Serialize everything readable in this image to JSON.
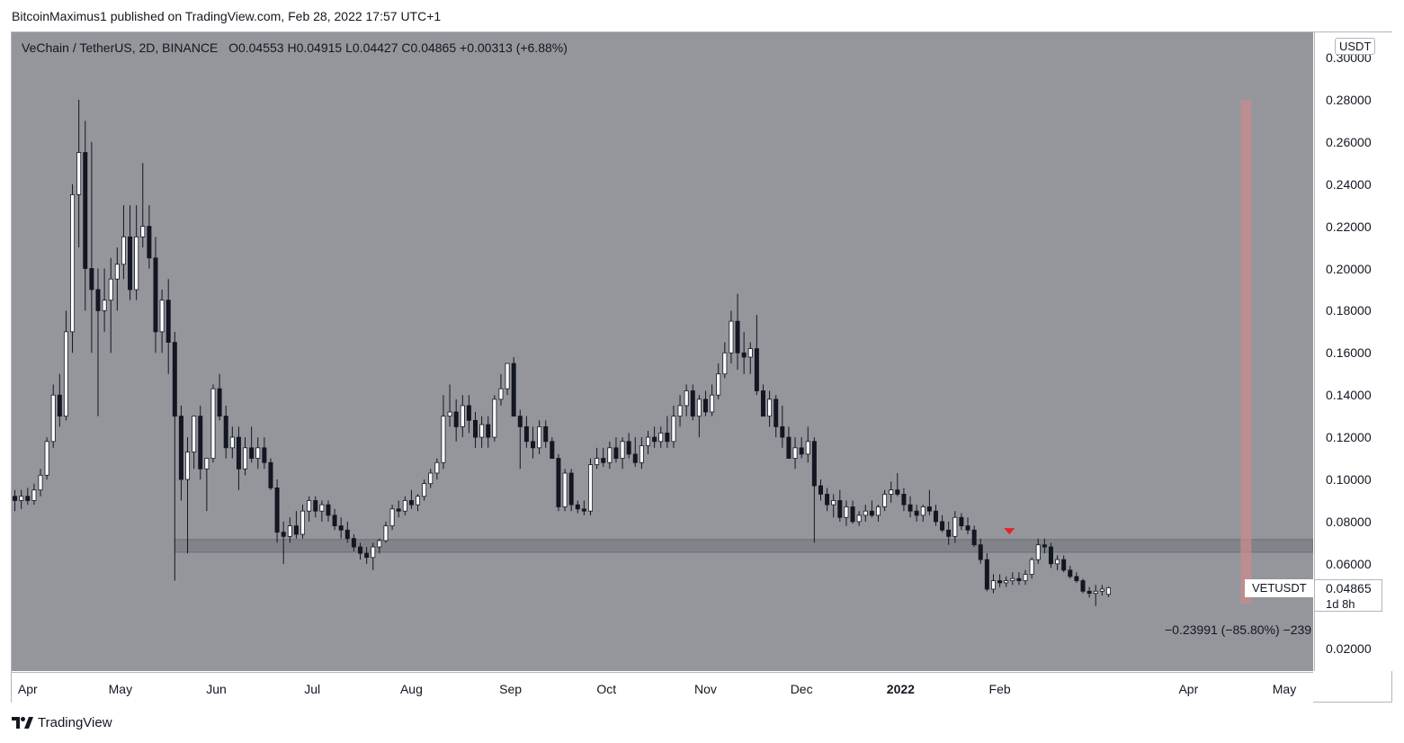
{
  "header": {
    "publish_line": "BitcoinMaximus1 published on TradingView.com, Feb 28, 2022 17:57 UTC+1"
  },
  "legend": {
    "symbol": "VeChain / TetherUS, 2D, BINANCE",
    "open_key": "O",
    "open": "0.04553",
    "high_key": "H",
    "high": "0.04915",
    "low_key": "L",
    "low": "0.04427",
    "close_key": "C",
    "close": "0.04865",
    "change": "+0.00313 (+6.88%)"
  },
  "price_axis": {
    "currency": "USDT",
    "labels": [
      "0.30000",
      "0.28000",
      "0.26000",
      "0.24000",
      "0.22000",
      "0.20000",
      "0.18000",
      "0.16000",
      "0.14000",
      "0.12000",
      "0.10000",
      "0.08000",
      "0.06000",
      "0.02000"
    ]
  },
  "time_axis": {
    "labels": [
      "Apr",
      "May",
      "Jun",
      "Jul",
      "Aug",
      "Sep",
      "Oct",
      "Nov",
      "Dec",
      "2022",
      "Feb",
      "Apr",
      "May"
    ]
  },
  "last_price": {
    "symbol": "VETUSDT",
    "price": "0.04865",
    "countdown": "1d 8h"
  },
  "measure": {
    "label": "−0.23991 (−85.80%) −239"
  },
  "footer": {
    "brand": "TradingView"
  },
  "colors": {
    "plot_bg": "#94969c",
    "candle_up": "#ffffff",
    "candle_down": "#131722",
    "support_zone": "#7e8087",
    "measure_bar": "#c98a8e",
    "marker": "#e8202a"
  },
  "chart_data": {
    "type": "candlestick",
    "title": "VeChain / TetherUS, 2D, BINANCE",
    "ylabel": "USDT",
    "ylim": [
      0.0,
      0.3
    ],
    "x_range": [
      "2021-03-29",
      "2022-05-10"
    ],
    "support_zone": [
      0.0655,
      0.0715
    ],
    "marker": {
      "type": "triangle-down",
      "date": "2022-02-04",
      "y": 0.0735
    },
    "measure": {
      "from": 0.28,
      "to": 0.041,
      "date": "2022-04-19",
      "change": -0.23991,
      "pct": -85.8
    },
    "candles_fields": [
      "date",
      "open",
      "high",
      "low",
      "close"
    ],
    "candles": [
      [
        "2021-03-30",
        0.092,
        0.095,
        0.085,
        0.09
      ],
      [
        "2021-04-01",
        0.09,
        0.095,
        0.086,
        0.092
      ],
      [
        "2021-04-03",
        0.092,
        0.096,
        0.088,
        0.09
      ],
      [
        "2021-04-05",
        0.09,
        0.098,
        0.088,
        0.095
      ],
      [
        "2021-04-07",
        0.095,
        0.105,
        0.092,
        0.102
      ],
      [
        "2021-04-09",
        0.102,
        0.12,
        0.1,
        0.118
      ],
      [
        "2021-04-11",
        0.118,
        0.145,
        0.115,
        0.14
      ],
      [
        "2021-04-13",
        0.14,
        0.15,
        0.125,
        0.13
      ],
      [
        "2021-04-15",
        0.13,
        0.18,
        0.128,
        0.17
      ],
      [
        "2021-04-17",
        0.17,
        0.24,
        0.16,
        0.235
      ],
      [
        "2021-04-19",
        0.235,
        0.28,
        0.21,
        0.255
      ],
      [
        "2021-04-21",
        0.255,
        0.27,
        0.18,
        0.2
      ],
      [
        "2021-04-23",
        0.2,
        0.26,
        0.16,
        0.19
      ],
      [
        "2021-04-25",
        0.19,
        0.2,
        0.13,
        0.18
      ],
      [
        "2021-04-27",
        0.18,
        0.2,
        0.17,
        0.185
      ],
      [
        "2021-04-29",
        0.185,
        0.205,
        0.16,
        0.195
      ],
      [
        "2021-05-01",
        0.195,
        0.21,
        0.18,
        0.202
      ],
      [
        "2021-05-03",
        0.202,
        0.23,
        0.195,
        0.215
      ],
      [
        "2021-05-05",
        0.215,
        0.23,
        0.185,
        0.19
      ],
      [
        "2021-05-07",
        0.19,
        0.23,
        0.185,
        0.215
      ],
      [
        "2021-05-09",
        0.215,
        0.25,
        0.21,
        0.22
      ],
      [
        "2021-05-11",
        0.22,
        0.23,
        0.2,
        0.205
      ],
      [
        "2021-05-13",
        0.205,
        0.215,
        0.16,
        0.17
      ],
      [
        "2021-05-15",
        0.17,
        0.19,
        0.16,
        0.185
      ],
      [
        "2021-05-17",
        0.185,
        0.195,
        0.15,
        0.165
      ],
      [
        "2021-05-19",
        0.165,
        0.17,
        0.052,
        0.13
      ],
      [
        "2021-05-21",
        0.13,
        0.135,
        0.09,
        0.1
      ],
      [
        "2021-05-23",
        0.1,
        0.12,
        0.065,
        0.113
      ],
      [
        "2021-05-25",
        0.113,
        0.13,
        0.105,
        0.13
      ],
      [
        "2021-05-27",
        0.13,
        0.135,
        0.1,
        0.105
      ],
      [
        "2021-05-29",
        0.105,
        0.11,
        0.085,
        0.11
      ],
      [
        "2021-05-31",
        0.11,
        0.145,
        0.108,
        0.143
      ],
      [
        "2021-06-02",
        0.143,
        0.15,
        0.128,
        0.13
      ],
      [
        "2021-06-04",
        0.13,
        0.135,
        0.11,
        0.115
      ],
      [
        "2021-06-06",
        0.115,
        0.125,
        0.11,
        0.12
      ],
      [
        "2021-06-08",
        0.12,
        0.125,
        0.095,
        0.105
      ],
      [
        "2021-06-10",
        0.105,
        0.12,
        0.102,
        0.115
      ],
      [
        "2021-06-12",
        0.115,
        0.125,
        0.108,
        0.11
      ],
      [
        "2021-06-14",
        0.11,
        0.12,
        0.105,
        0.115
      ],
      [
        "2021-06-16",
        0.115,
        0.12,
        0.105,
        0.108
      ],
      [
        "2021-06-18",
        0.108,
        0.11,
        0.095,
        0.096
      ],
      [
        "2021-06-20",
        0.096,
        0.1,
        0.07,
        0.075
      ],
      [
        "2021-06-22",
        0.075,
        0.08,
        0.06,
        0.073
      ],
      [
        "2021-06-24",
        0.073,
        0.082,
        0.07,
        0.078
      ],
      [
        "2021-06-26",
        0.078,
        0.085,
        0.072,
        0.074
      ],
      [
        "2021-06-28",
        0.074,
        0.088,
        0.072,
        0.085
      ],
      [
        "2021-06-30",
        0.085,
        0.092,
        0.08,
        0.09
      ],
      [
        "2021-07-02",
        0.09,
        0.092,
        0.082,
        0.085
      ],
      [
        "2021-07-04",
        0.085,
        0.09,
        0.08,
        0.088
      ],
      [
        "2021-07-06",
        0.088,
        0.09,
        0.08,
        0.083
      ],
      [
        "2021-07-08",
        0.083,
        0.086,
        0.076,
        0.078
      ],
      [
        "2021-07-10",
        0.078,
        0.082,
        0.072,
        0.076
      ],
      [
        "2021-07-12",
        0.076,
        0.08,
        0.07,
        0.072
      ],
      [
        "2021-07-14",
        0.072,
        0.074,
        0.066,
        0.068
      ],
      [
        "2021-07-16",
        0.068,
        0.07,
        0.062,
        0.065
      ],
      [
        "2021-07-18",
        0.065,
        0.068,
        0.06,
        0.063
      ],
      [
        "2021-07-20",
        0.063,
        0.07,
        0.057,
        0.068
      ],
      [
        "2021-07-22",
        0.068,
        0.072,
        0.065,
        0.071
      ],
      [
        "2021-07-24",
        0.071,
        0.08,
        0.07,
        0.078
      ],
      [
        "2021-07-26",
        0.078,
        0.088,
        0.076,
        0.086
      ],
      [
        "2021-07-28",
        0.086,
        0.09,
        0.082,
        0.085
      ],
      [
        "2021-07-30",
        0.085,
        0.092,
        0.083,
        0.09
      ],
      [
        "2021-08-01",
        0.09,
        0.095,
        0.086,
        0.088
      ],
      [
        "2021-08-03",
        0.088,
        0.093,
        0.085,
        0.092
      ],
      [
        "2021-08-05",
        0.092,
        0.1,
        0.09,
        0.098
      ],
      [
        "2021-08-07",
        0.098,
        0.105,
        0.096,
        0.103
      ],
      [
        "2021-08-09",
        0.103,
        0.11,
        0.1,
        0.108
      ],
      [
        "2021-08-11",
        0.108,
        0.14,
        0.105,
        0.13
      ],
      [
        "2021-08-13",
        0.13,
        0.145,
        0.125,
        0.132
      ],
      [
        "2021-08-15",
        0.132,
        0.138,
        0.118,
        0.125
      ],
      [
        "2021-08-17",
        0.125,
        0.14,
        0.12,
        0.135
      ],
      [
        "2021-08-19",
        0.135,
        0.14,
        0.122,
        0.128
      ],
      [
        "2021-08-21",
        0.128,
        0.132,
        0.115,
        0.12
      ],
      [
        "2021-08-23",
        0.12,
        0.13,
        0.115,
        0.126
      ],
      [
        "2021-08-25",
        0.126,
        0.13,
        0.115,
        0.12
      ],
      [
        "2021-08-27",
        0.12,
        0.14,
        0.118,
        0.138
      ],
      [
        "2021-08-29",
        0.138,
        0.15,
        0.135,
        0.143
      ],
      [
        "2021-08-31",
        0.143,
        0.155,
        0.14,
        0.155
      ],
      [
        "2021-09-02",
        0.155,
        0.158,
        0.13,
        0.13
      ],
      [
        "2021-09-04",
        0.13,
        0.133,
        0.105,
        0.125
      ],
      [
        "2021-09-06",
        0.125,
        0.13,
        0.115,
        0.118
      ],
      [
        "2021-09-08",
        0.118,
        0.125,
        0.11,
        0.115
      ],
      [
        "2021-09-10",
        0.115,
        0.128,
        0.112,
        0.125
      ],
      [
        "2021-09-12",
        0.125,
        0.128,
        0.115,
        0.118
      ],
      [
        "2021-09-14",
        0.118,
        0.12,
        0.11,
        0.11
      ],
      [
        "2021-09-16",
        0.11,
        0.112,
        0.085,
        0.087
      ],
      [
        "2021-09-18",
        0.087,
        0.105,
        0.085,
        0.103
      ],
      [
        "2021-09-20",
        0.103,
        0.105,
        0.085,
        0.088
      ],
      [
        "2021-09-22",
        0.088,
        0.09,
        0.084,
        0.086
      ],
      [
        "2021-09-24",
        0.086,
        0.09,
        0.083,
        0.085
      ],
      [
        "2021-09-26",
        0.085,
        0.11,
        0.083,
        0.107
      ],
      [
        "2021-09-28",
        0.107,
        0.115,
        0.105,
        0.11
      ],
      [
        "2021-09-30",
        0.11,
        0.115,
        0.106,
        0.108
      ],
      [
        "2021-10-02",
        0.108,
        0.118,
        0.105,
        0.115
      ],
      [
        "2021-10-04",
        0.115,
        0.12,
        0.108,
        0.11
      ],
      [
        "2021-10-06",
        0.11,
        0.12,
        0.105,
        0.118
      ],
      [
        "2021-10-08",
        0.118,
        0.122,
        0.11,
        0.112
      ],
      [
        "2021-10-10",
        0.112,
        0.12,
        0.106,
        0.108
      ],
      [
        "2021-10-12",
        0.108,
        0.12,
        0.105,
        0.116
      ],
      [
        "2021-10-14",
        0.116,
        0.123,
        0.112,
        0.12
      ],
      [
        "2021-10-16",
        0.12,
        0.125,
        0.115,
        0.118
      ],
      [
        "2021-10-18",
        0.118,
        0.125,
        0.115,
        0.122
      ],
      [
        "2021-10-20",
        0.122,
        0.13,
        0.115,
        0.118
      ],
      [
        "2021-10-22",
        0.118,
        0.135,
        0.115,
        0.13
      ],
      [
        "2021-10-24",
        0.13,
        0.14,
        0.125,
        0.135
      ],
      [
        "2021-10-26",
        0.135,
        0.145,
        0.13,
        0.142
      ],
      [
        "2021-10-28",
        0.142,
        0.145,
        0.128,
        0.13
      ],
      [
        "2021-10-30",
        0.13,
        0.14,
        0.12,
        0.138
      ],
      [
        "2021-11-01",
        0.138,
        0.142,
        0.13,
        0.132
      ],
      [
        "2021-11-03",
        0.132,
        0.145,
        0.13,
        0.14
      ],
      [
        "2021-11-05",
        0.14,
        0.155,
        0.138,
        0.15
      ],
      [
        "2021-11-07",
        0.15,
        0.165,
        0.148,
        0.16
      ],
      [
        "2021-11-09",
        0.16,
        0.18,
        0.155,
        0.175
      ],
      [
        "2021-11-11",
        0.175,
        0.188,
        0.152,
        0.16
      ],
      [
        "2021-11-13",
        0.16,
        0.17,
        0.15,
        0.158
      ],
      [
        "2021-11-15",
        0.158,
        0.165,
        0.15,
        0.162
      ],
      [
        "2021-11-17",
        0.162,
        0.178,
        0.14,
        0.142
      ],
      [
        "2021-11-19",
        0.142,
        0.145,
        0.13,
        0.13
      ],
      [
        "2021-11-21",
        0.13,
        0.142,
        0.125,
        0.138
      ],
      [
        "2021-11-23",
        0.138,
        0.14,
        0.12,
        0.125
      ],
      [
        "2021-11-25",
        0.125,
        0.135,
        0.115,
        0.12
      ],
      [
        "2021-11-27",
        0.12,
        0.125,
        0.11,
        0.11
      ],
      [
        "2021-11-29",
        0.11,
        0.12,
        0.105,
        0.115
      ],
      [
        "2021-12-01",
        0.115,
        0.12,
        0.11,
        0.112
      ],
      [
        "2021-12-03",
        0.112,
        0.125,
        0.108,
        0.118
      ],
      [
        "2021-12-05",
        0.118,
        0.12,
        0.07,
        0.097
      ],
      [
        "2021-12-07",
        0.097,
        0.1,
        0.09,
        0.093
      ],
      [
        "2021-12-09",
        0.093,
        0.096,
        0.085,
        0.088
      ],
      [
        "2021-12-11",
        0.088,
        0.093,
        0.082,
        0.09
      ],
      [
        "2021-12-13",
        0.09,
        0.095,
        0.08,
        0.082
      ],
      [
        "2021-12-15",
        0.082,
        0.09,
        0.078,
        0.087
      ],
      [
        "2021-12-17",
        0.087,
        0.09,
        0.079,
        0.08
      ],
      [
        "2021-12-19",
        0.08,
        0.085,
        0.078,
        0.083
      ],
      [
        "2021-12-21",
        0.083,
        0.088,
        0.08,
        0.085
      ],
      [
        "2021-12-23",
        0.085,
        0.09,
        0.082,
        0.083
      ],
      [
        "2021-12-25",
        0.083,
        0.088,
        0.08,
        0.087
      ],
      [
        "2021-12-27",
        0.087,
        0.095,
        0.085,
        0.093
      ],
      [
        "2021-12-29",
        0.093,
        0.099,
        0.089,
        0.095
      ],
      [
        "2021-12-31",
        0.095,
        0.103,
        0.092,
        0.093
      ],
      [
        "2022-01-02",
        0.093,
        0.096,
        0.085,
        0.088
      ],
      [
        "2022-01-04",
        0.088,
        0.092,
        0.082,
        0.085
      ],
      [
        "2022-01-06",
        0.085,
        0.088,
        0.08,
        0.083
      ],
      [
        "2022-01-08",
        0.083,
        0.088,
        0.08,
        0.087
      ],
      [
        "2022-01-10",
        0.087,
        0.095,
        0.083,
        0.085
      ],
      [
        "2022-01-12",
        0.085,
        0.088,
        0.078,
        0.08
      ],
      [
        "2022-01-14",
        0.08,
        0.083,
        0.075,
        0.076
      ],
      [
        "2022-01-16",
        0.076,
        0.08,
        0.069,
        0.073
      ],
      [
        "2022-01-18",
        0.073,
        0.085,
        0.07,
        0.082
      ],
      [
        "2022-01-20",
        0.082,
        0.084,
        0.076,
        0.078
      ],
      [
        "2022-01-22",
        0.078,
        0.082,
        0.074,
        0.076
      ],
      [
        "2022-01-24",
        0.076,
        0.078,
        0.068,
        0.069
      ],
      [
        "2022-01-26",
        0.069,
        0.072,
        0.06,
        0.062
      ],
      [
        "2022-01-28",
        0.062,
        0.065,
        0.047,
        0.048
      ],
      [
        "2022-01-30",
        0.048,
        0.055,
        0.046,
        0.052
      ],
      [
        "2022-02-01",
        0.052,
        0.055,
        0.049,
        0.051
      ],
      [
        "2022-02-03",
        0.051,
        0.054,
        0.049,
        0.052
      ],
      [
        "2022-02-05",
        0.052,
        0.056,
        0.05,
        0.053
      ],
      [
        "2022-02-07",
        0.053,
        0.056,
        0.05,
        0.052
      ],
      [
        "2022-02-09",
        0.052,
        0.057,
        0.05,
        0.055
      ],
      [
        "2022-02-11",
        0.055,
        0.063,
        0.053,
        0.062
      ],
      [
        "2022-02-13",
        0.062,
        0.072,
        0.06,
        0.069
      ],
      [
        "2022-02-15",
        0.069,
        0.072,
        0.065,
        0.068
      ],
      [
        "2022-02-17",
        0.068,
        0.07,
        0.058,
        0.06
      ],
      [
        "2022-02-19",
        0.06,
        0.064,
        0.057,
        0.062
      ],
      [
        "2022-02-21",
        0.062,
        0.064,
        0.056,
        0.057
      ],
      [
        "2022-02-23",
        0.057,
        0.059,
        0.053,
        0.054
      ],
      [
        "2022-02-25",
        0.054,
        0.056,
        0.051,
        0.052
      ],
      [
        "2022-02-27",
        0.052,
        0.053,
        0.046,
        0.047
      ],
      [
        "2022-03-01",
        0.047,
        0.049,
        0.044,
        0.046
      ],
      [
        "2022-03-03",
        0.046,
        0.05,
        0.04,
        0.047
      ],
      [
        "2022-03-05",
        0.047,
        0.05,
        0.045,
        0.048
      ],
      [
        "2022-03-07",
        0.04553,
        0.04915,
        0.04427,
        0.04865
      ]
    ]
  }
}
